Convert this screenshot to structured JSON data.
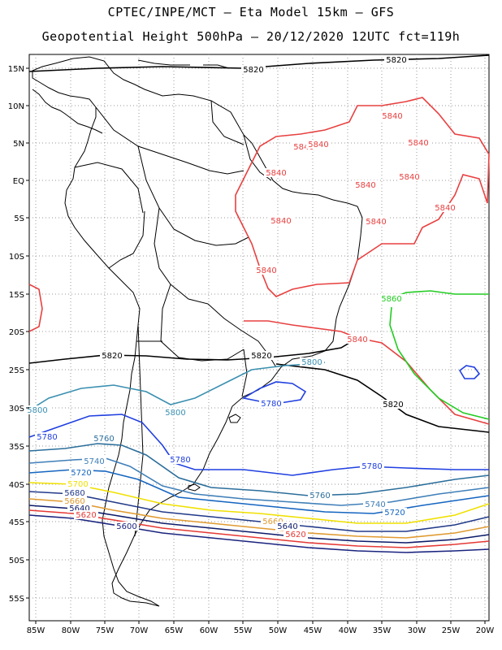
{
  "title_line1": "CPTEC/INPE/MCT –  Eta Model 15km – GFS",
  "title_line2": "Geopotential Height 500hPa – 20/12/2020 12UTC fct=119h",
  "lat_labels": [
    "15N",
    "10N",
    "5N",
    "EQ",
    "5S",
    "10S",
    "15S",
    "20S",
    "25S",
    "30S",
    "35S",
    "40S",
    "45S",
    "50S",
    "55S"
  ],
  "lon_labels": [
    "85W",
    "80W",
    "75W",
    "70W",
    "65W",
    "60W",
    "55W",
    "50W",
    "45W",
    "40W",
    "35W",
    "30W",
    "25W",
    "20W"
  ],
  "contour_labels": {
    "c5600": "5600",
    "c5620": "5620",
    "c5640": "5640",
    "c5660": "5660",
    "c5680": "5680",
    "c5700": "5700",
    "c5720": "5720",
    "c5740": "5740",
    "c5760": "5760",
    "c5780": "5780",
    "c5800": "5800",
    "c5820": "5820",
    "c5840": "5840",
    "c5860": "5860"
  },
  "colors": {
    "c5600": "#1a237e",
    "c5620": "#e53935",
    "c5640": "#0d1b6b",
    "c5660": "#e09a30",
    "c5680": "#223a8a",
    "c5700": "#f0e000",
    "c5720": "#1565c0",
    "c5740": "#3f7fb8",
    "c5760": "#2b6e9b",
    "c5780": "#1f3fe0",
    "c5800": "#3a8fb0",
    "c5820": "#000000",
    "c5840": "#e84040",
    "c5860": "#22cc22",
    "coast": "#000000",
    "grid": "#999999"
  }
}
